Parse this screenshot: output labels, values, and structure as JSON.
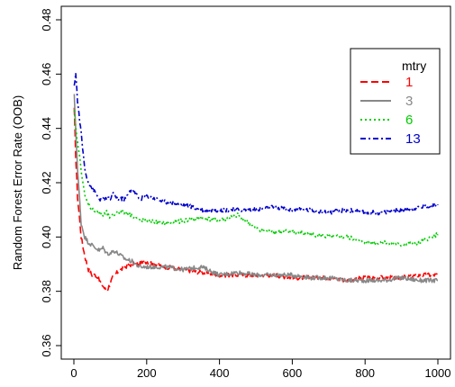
{
  "chart_data": {
    "type": "line",
    "title": "",
    "xlabel": "",
    "ylabel": "Random Forest Error Rate (OOB)",
    "xlim": [
      0,
      1000
    ],
    "ylim": [
      0.36,
      0.48
    ],
    "x_ticks": [
      0,
      200,
      400,
      600,
      800,
      1000
    ],
    "y_ticks": [
      0.36,
      0.38,
      0.4,
      0.42,
      0.44,
      0.46,
      0.48
    ],
    "x_tick_labels": [
      "0",
      "200",
      "400",
      "600",
      "800",
      "1000"
    ],
    "y_tick_labels": [
      "0.36",
      "0.38",
      "0.40",
      "0.42",
      "0.44",
      "0.46",
      "0.48"
    ],
    "grid": false,
    "legend": {
      "title": "mtry",
      "position": "top-right"
    },
    "series": [
      {
        "name": "1",
        "color": "#ff0000",
        "dash": "long-dash",
        "x": [
          1,
          5,
          10,
          20,
          30,
          40,
          50,
          60,
          70,
          80,
          90,
          100,
          110,
          120,
          140,
          160,
          180,
          200,
          250,
          300,
          350,
          400,
          450,
          500,
          550,
          600,
          650,
          700,
          750,
          800,
          850,
          900,
          950,
          1000
        ],
        "y": [
          0.447,
          0.43,
          0.415,
          0.4,
          0.393,
          0.388,
          0.386,
          0.386,
          0.384,
          0.382,
          0.38,
          0.383,
          0.386,
          0.387,
          0.389,
          0.39,
          0.39,
          0.391,
          0.389,
          0.388,
          0.387,
          0.386,
          0.386,
          0.386,
          0.386,
          0.385,
          0.385,
          0.385,
          0.384,
          0.385,
          0.385,
          0.385,
          0.386,
          0.386
        ]
      },
      {
        "name": "3",
        "color": "#888888",
        "dash": "solid",
        "x": [
          1,
          5,
          10,
          20,
          30,
          40,
          50,
          60,
          70,
          80,
          90,
          100,
          110,
          120,
          140,
          160,
          180,
          200,
          250,
          300,
          350,
          400,
          450,
          500,
          550,
          600,
          650,
          700,
          750,
          800,
          850,
          900,
          950,
          1000
        ],
        "y": [
          0.452,
          0.44,
          0.425,
          0.405,
          0.4,
          0.398,
          0.397,
          0.396,
          0.395,
          0.396,
          0.394,
          0.394,
          0.395,
          0.394,
          0.392,
          0.391,
          0.389,
          0.389,
          0.389,
          0.388,
          0.389,
          0.386,
          0.387,
          0.386,
          0.386,
          0.386,
          0.385,
          0.385,
          0.384,
          0.384,
          0.384,
          0.385,
          0.384,
          0.384
        ]
      },
      {
        "name": "6",
        "color": "#00cc00",
        "dash": "dotted",
        "x": [
          1,
          5,
          10,
          20,
          30,
          40,
          50,
          60,
          70,
          80,
          90,
          100,
          110,
          120,
          140,
          160,
          180,
          200,
          250,
          300,
          350,
          400,
          450,
          500,
          550,
          600,
          650,
          700,
          750,
          800,
          850,
          900,
          950,
          1000
        ],
        "y": [
          0.446,
          0.44,
          0.435,
          0.425,
          0.415,
          0.412,
          0.41,
          0.41,
          0.409,
          0.408,
          0.409,
          0.407,
          0.408,
          0.409,
          0.409,
          0.408,
          0.406,
          0.406,
          0.405,
          0.406,
          0.407,
          0.406,
          0.408,
          0.403,
          0.402,
          0.402,
          0.401,
          0.4,
          0.4,
          0.398,
          0.398,
          0.397,
          0.398,
          0.401
        ]
      },
      {
        "name": "13",
        "color": "#0000cc",
        "dash": "dash-dot",
        "x": [
          1,
          5,
          10,
          20,
          30,
          40,
          50,
          60,
          70,
          80,
          90,
          100,
          110,
          120,
          140,
          160,
          180,
          200,
          250,
          300,
          350,
          400,
          450,
          500,
          550,
          600,
          650,
          700,
          750,
          800,
          850,
          900,
          950,
          1000
        ],
        "y": [
          0.455,
          0.461,
          0.45,
          0.438,
          0.425,
          0.42,
          0.418,
          0.416,
          0.414,
          0.414,
          0.414,
          0.414,
          0.416,
          0.414,
          0.414,
          0.418,
          0.414,
          0.415,
          0.413,
          0.412,
          0.41,
          0.41,
          0.41,
          0.41,
          0.411,
          0.41,
          0.41,
          0.409,
          0.41,
          0.409,
          0.409,
          0.41,
          0.411,
          0.412
        ]
      }
    ]
  }
}
